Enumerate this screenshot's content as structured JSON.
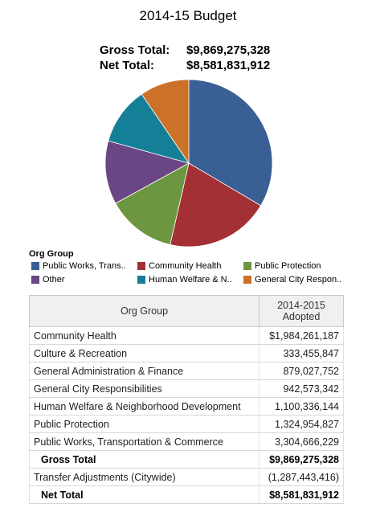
{
  "title": "2014-15 Budget",
  "totals": {
    "gross_label": "Gross Total:",
    "gross_value": "$9,869,275,328",
    "net_label": "Net Total:",
    "net_value": "$8,581,831,912"
  },
  "legend": {
    "title": "Org Group",
    "items": [
      {
        "label": "Public Works, Trans..",
        "color": "#3a5f94"
      },
      {
        "label": "Community Health",
        "color": "#a23034"
      },
      {
        "label": "Public Protection",
        "color": "#6d9640"
      },
      {
        "label": "Other",
        "color": "#6a4684"
      },
      {
        "label": "Human Welfare & N..",
        "color": "#147f96"
      },
      {
        "label": "General City Respon..",
        "color": "#cc7128"
      }
    ]
  },
  "chart_data": {
    "type": "pie",
    "title": "2014-15 Budget",
    "slices": [
      {
        "label": "Public Works, Trans..",
        "value": 3304666229,
        "color": "#3a5f94"
      },
      {
        "label": "Community Health",
        "value": 1984261187,
        "color": "#a23034"
      },
      {
        "label": "Public Protection",
        "value": 1324954827,
        "color": "#6d9640"
      },
      {
        "label": "Other",
        "value": 1212483599,
        "color": "#6a4684"
      },
      {
        "label": "Human Welfare & N..",
        "value": 1100336144,
        "color": "#147f96"
      },
      {
        "label": "General City Respon..",
        "value": 942573342,
        "color": "#cc7128"
      }
    ]
  },
  "table": {
    "headers": [
      "Org Group",
      "2014-2015 Adopted"
    ],
    "rows": [
      {
        "name": "Community Health",
        "value": "$1,984,261,187"
      },
      {
        "name": "Culture & Recreation",
        "value": "333,455,847"
      },
      {
        "name": "General Administration & Finance",
        "value": "879,027,752"
      },
      {
        "name": "General City Responsibilities",
        "value": "942,573,342"
      },
      {
        "name": "Human Welfare & Neighborhood Development",
        "value": "1,100,336,144"
      },
      {
        "name": "Public Protection",
        "value": "1,324,954,827"
      },
      {
        "name": "Public Works, Transportation & Commerce",
        "value": "3,304,666,229"
      },
      {
        "name": "Gross Total",
        "value": "$9,869,275,328",
        "total": true
      },
      {
        "name": "Transfer Adjustments (Citywide)",
        "value": "(1,287,443,416)"
      },
      {
        "name": "Net Total",
        "value": "$8,581,831,912",
        "total": true
      }
    ]
  }
}
